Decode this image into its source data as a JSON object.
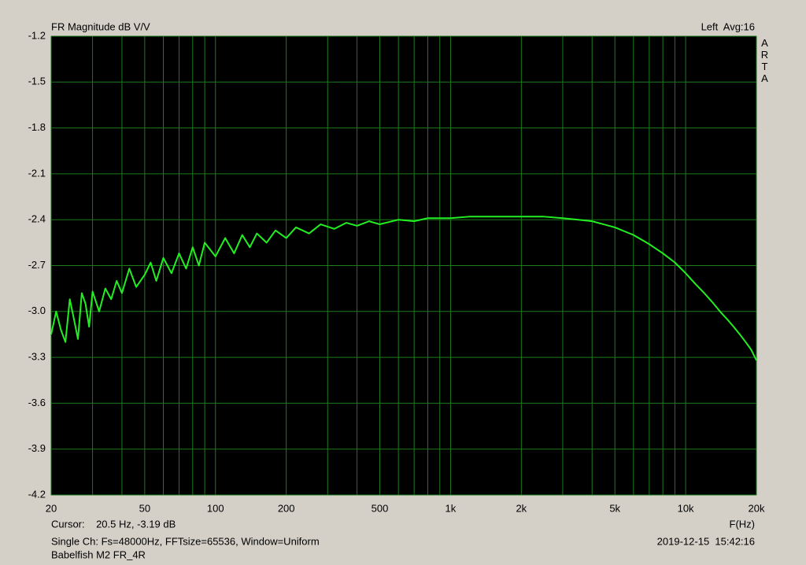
{
  "chart_data": {
    "type": "line",
    "title": "FR Magnitude dB V/V",
    "top_right_label": "Left  Avg:16",
    "side_label": "ARTA",
    "x_label": "F(Hz)",
    "cursor_label": "Cursor:    20.5 Hz, -3.19 dB",
    "info_line": "Single Ch: Fs=48000Hz, FFTsize=65536, Window=Uniform",
    "timestamp": "2019-12-15  15:42:16",
    "file_label": "Babelfish M2 FR_4R",
    "x_log": true,
    "grid": true,
    "background": "#000000",
    "grid_color": "#1d7a1d",
    "xlim": [
      20,
      20000
    ],
    "xticks": [
      20,
      50,
      100,
      200,
      500,
      {
        "value": 1000,
        "label": "1k"
      },
      {
        "value": 2000,
        "label": "2k"
      },
      {
        "value": 5000,
        "label": "5k"
      },
      {
        "value": 10000,
        "label": "10k"
      },
      {
        "value": 20000,
        "label": "20k"
      }
    ],
    "xminor_ticks": [
      30,
      40,
      60,
      70,
      80,
      90,
      300,
      400,
      600,
      700,
      800,
      900,
      3000,
      4000,
      6000,
      7000,
      8000,
      9000
    ],
    "ylim": [
      -4.2,
      -1.2
    ],
    "yticks": [
      -4.2,
      -3.9,
      -3.6,
      -3.3,
      {
        "value": -3.0,
        "label": "-3.0"
      },
      -2.7,
      -2.4,
      -2.1,
      -1.8,
      -1.5,
      -1.2
    ],
    "x": [
      20,
      21,
      22,
      23,
      24,
      25,
      26,
      27,
      28,
      29,
      30,
      32,
      34,
      36,
      38,
      40,
      43,
      46,
      50,
      53,
      56,
      60,
      65,
      70,
      75,
      80,
      85,
      90,
      100,
      110,
      120,
      130,
      140,
      150,
      165,
      180,
      200,
      220,
      250,
      280,
      320,
      360,
      400,
      450,
      500,
      600,
      700,
      800,
      1000,
      1200,
      1500,
      2000,
      2500,
      3000,
      3500,
      4000,
      5000,
      6000,
      7000,
      8000,
      9000,
      10000,
      11000,
      12000,
      13000,
      14000,
      15000,
      16000,
      17000,
      18000,
      19000,
      20000
    ],
    "series": [
      {
        "color": "#22ee22",
        "values": [
          -3.15,
          -3.0,
          -3.12,
          -3.2,
          -2.92,
          -3.05,
          -3.18,
          -2.88,
          -2.95,
          -3.1,
          -2.87,
          -3.0,
          -2.85,
          -2.92,
          -2.8,
          -2.88,
          -2.72,
          -2.84,
          -2.76,
          -2.68,
          -2.8,
          -2.65,
          -2.75,
          -2.62,
          -2.72,
          -2.58,
          -2.7,
          -2.55,
          -2.64,
          -2.52,
          -2.62,
          -2.5,
          -2.58,
          -2.49,
          -2.55,
          -2.47,
          -2.52,
          -2.45,
          -2.49,
          -2.43,
          -2.46,
          -2.42,
          -2.44,
          -2.41,
          -2.43,
          -2.4,
          -2.41,
          -2.39,
          -2.39,
          -2.38,
          -2.38,
          -2.38,
          -2.38,
          -2.39,
          -2.4,
          -2.41,
          -2.45,
          -2.5,
          -2.56,
          -2.62,
          -2.68,
          -2.75,
          -2.82,
          -2.88,
          -2.94,
          -3.0,
          -3.05,
          -3.1,
          -3.15,
          -3.2,
          -3.25,
          -3.32
        ]
      }
    ]
  }
}
